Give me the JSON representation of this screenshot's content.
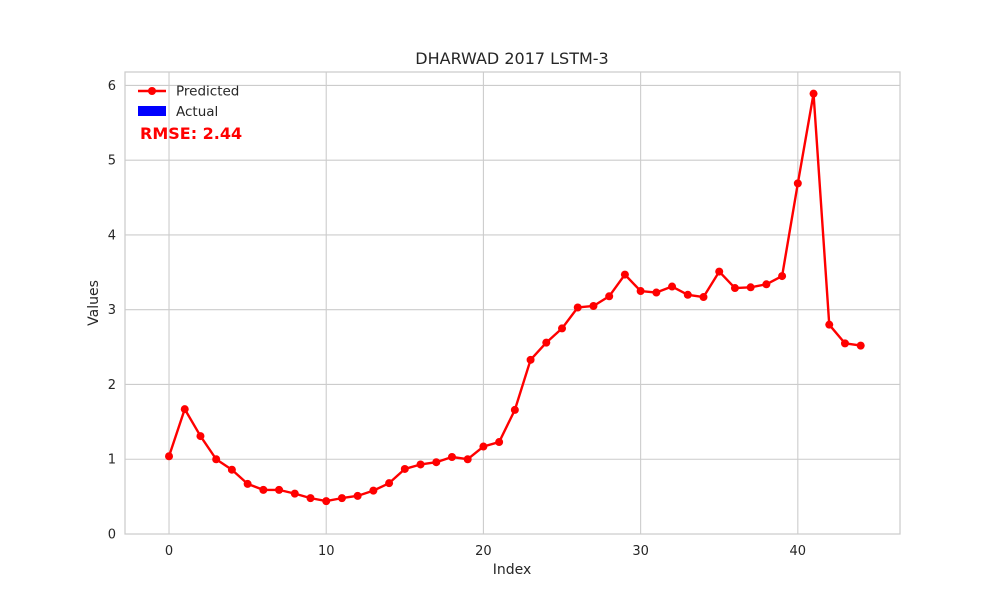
{
  "chart_data": {
    "type": "line",
    "title": "DHARWAD 2017 LSTM-3",
    "xlabel": "Index",
    "ylabel": "Values",
    "xlim": [
      -2.8,
      46.5
    ],
    "ylim": [
      0,
      6.18
    ],
    "x_ticks": [
      0,
      10,
      20,
      30,
      40
    ],
    "y_ticks": [
      0,
      1,
      2,
      3,
      4,
      5,
      6
    ],
    "x_tick_labels": [
      "0",
      "10",
      "20",
      "30",
      "40"
    ],
    "y_tick_labels": [
      "0",
      "1",
      "2",
      "3",
      "4",
      "5",
      "6"
    ],
    "grid": true,
    "legend_position": "top-left",
    "series": [
      {
        "name": "Predicted",
        "color": "#ff0000",
        "marker": "circle",
        "x": [
          0,
          1,
          2,
          3,
          4,
          5,
          6,
          7,
          8,
          9,
          10,
          11,
          12,
          13,
          14,
          15,
          16,
          17,
          18,
          19,
          20,
          21,
          22,
          23,
          24,
          25,
          26,
          27,
          28,
          29,
          30,
          31,
          32,
          33,
          34,
          35,
          36,
          37,
          38,
          39,
          40,
          41,
          42,
          43,
          44
        ],
        "values": [
          1.04,
          1.67,
          1.31,
          1.0,
          0.86,
          0.67,
          0.59,
          0.59,
          0.54,
          0.48,
          0.44,
          0.48,
          0.51,
          0.58,
          0.68,
          0.87,
          0.93,
          0.96,
          1.03,
          1.0,
          1.17,
          1.23,
          1.66,
          2.33,
          2.56,
          2.75,
          3.03,
          3.05,
          3.18,
          3.47,
          3.25,
          3.23,
          3.31,
          3.2,
          3.17,
          3.51,
          3.29,
          3.3,
          3.34,
          3.45,
          4.69,
          5.89,
          2.8,
          2.55,
          2.52
        ]
      },
      {
        "name": "Actual",
        "color": "#0000ff",
        "values": []
      }
    ],
    "annotations": [
      {
        "text": "RMSE: 2.44",
        "color": "#ff0000",
        "position": "top-left"
      }
    ]
  }
}
